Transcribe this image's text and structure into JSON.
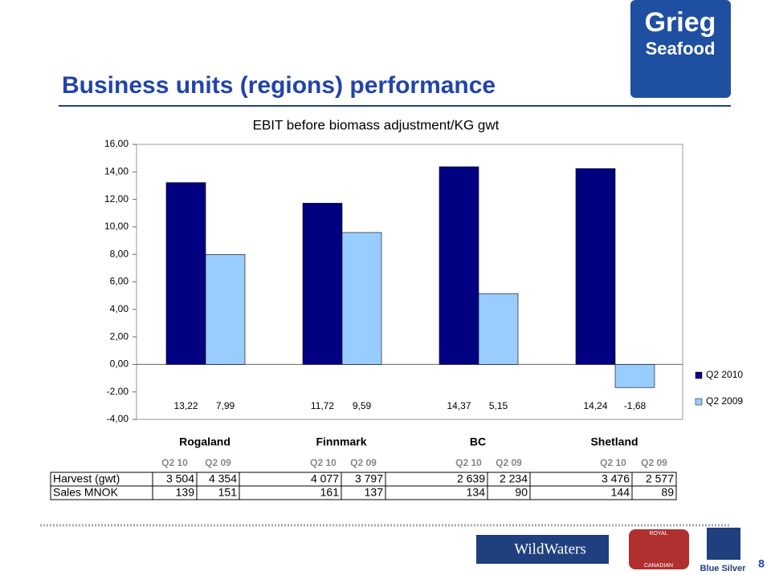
{
  "slide": {
    "title": "Business units (regions) performance",
    "page_number": "8"
  },
  "logos": {
    "company_line1": "Grieg",
    "company_line2": "Seafood",
    "partner1": "WildWaters",
    "partner2_top": "ROYAL",
    "partner2_bottom": "CANADIAN",
    "partner3": "Blue Silver"
  },
  "chart_data": {
    "type": "bar",
    "title": "EBIT before biomass adjustment/KG gwt",
    "categories": [
      "Rogaland",
      "Finnmark",
      "BC",
      "Shetland"
    ],
    "series": [
      {
        "name": "Q2 2010",
        "color": "#000080",
        "values": [
          13.22,
          11.72,
          14.37,
          14.24
        ],
        "value_labels": [
          "13,22",
          "11,72",
          "14,37",
          "14,24"
        ]
      },
      {
        "name": "Q2 2009",
        "color": "#99ccff",
        "values": [
          7.99,
          9.59,
          5.15,
          -1.68
        ],
        "value_labels": [
          "7,99",
          "9,59",
          "5,15",
          "-1,68"
        ]
      }
    ],
    "ylim": [
      -4,
      16
    ],
    "yticks": [
      {
        "value": -4,
        "label": "-4,00"
      },
      {
        "value": -2,
        "label": "-2,00"
      },
      {
        "value": 0,
        "label": "0,00"
      },
      {
        "value": 2,
        "label": "2,00"
      },
      {
        "value": 4,
        "label": "4,00"
      },
      {
        "value": 6,
        "label": "6,00"
      },
      {
        "value": 8,
        "label": "8,00"
      },
      {
        "value": 10,
        "label": "10,00"
      },
      {
        "value": 12,
        "label": "12,00"
      },
      {
        "value": 14,
        "label": "14,00"
      },
      {
        "value": 16,
        "label": "16,00"
      }
    ],
    "grid": false,
    "legend": "right"
  },
  "table": {
    "subheaders": [
      "Q2 10",
      "Q2 09",
      "Q2 10",
      "Q2 09",
      "Q2 10",
      "Q2 09",
      "Q2 10",
      "Q2 09"
    ],
    "rows": [
      {
        "label": "Harvest (gwt)",
        "cells": [
          "3 504",
          "4 354",
          "4 077",
          "3 797",
          "2 639",
          "2 234",
          "3 476",
          "2 577"
        ]
      },
      {
        "label": "Sales MNOK",
        "cells": [
          "139",
          "151",
          "161",
          "137",
          "134",
          "90",
          "144",
          "89"
        ]
      }
    ]
  }
}
